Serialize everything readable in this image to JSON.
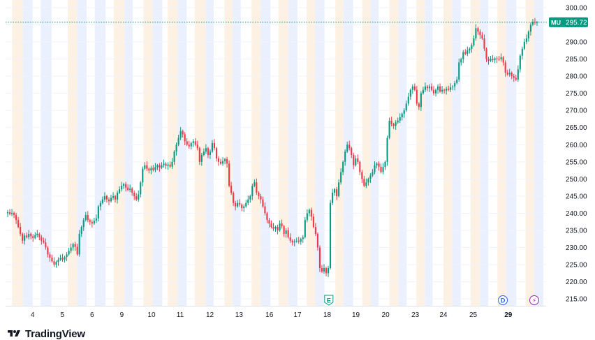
{
  "chart_data": {
    "type": "candlestick",
    "symbol": "MU",
    "last_price": "295.72",
    "symbol_label": "MU",
    "ylim": [
      213,
      301
    ],
    "y_ticks": [
      "300.00",
      "295.00",
      "290.00",
      "285.00",
      "280.00",
      "275.00",
      "270.00",
      "265.00",
      "260.00",
      "255.00",
      "250.00",
      "245.00",
      "240.00",
      "235.00",
      "230.00",
      "225.00",
      "220.00",
      "215.00"
    ],
    "y_tick_values": [
      300,
      295,
      290,
      285,
      280,
      275,
      270,
      265,
      260,
      255,
      250,
      245,
      240,
      235,
      230,
      225,
      220,
      215
    ],
    "x_labels": [
      "4",
      "5",
      "6",
      "9",
      "10",
      "11",
      "12",
      "13",
      "16",
      "17",
      "18",
      "19",
      "20",
      "23",
      "24",
      "25",
      "29"
    ],
    "x_label_bold": "29",
    "markers": [
      {
        "name": "earnings-marker",
        "label": "E"
      },
      {
        "name": "dividend-marker",
        "label": "D"
      },
      {
        "name": "split-marker",
        "label": "⚡"
      }
    ],
    "colors": {
      "up": "#089981",
      "down": "#f23645",
      "session_pre": "#fdf1e3",
      "session_post": "#eaf0fd",
      "grid": "#f0f3fa",
      "price_line": "#089981",
      "axis_text": "#131722",
      "marker_e": "#089981",
      "marker_d": "#2962ff",
      "marker_split": "#9c27b0"
    },
    "price_path": [
      240,
      240.3,
      239.8,
      240.1,
      239.5,
      238,
      236,
      234,
      232,
      233.5,
      233,
      234,
      233.3,
      232.8,
      233.6,
      234,
      233,
      232,
      231.5,
      230,
      228,
      227,
      226,
      225,
      225.8,
      226.5,
      227,
      226.5,
      227.2,
      228,
      229,
      230,
      231,
      230.2,
      228,
      234,
      236,
      238,
      239.5,
      238,
      237.5,
      237,
      237.8,
      238.5,
      242,
      243,
      244,
      245,
      244,
      243.5,
      244.5,
      245,
      244,
      246,
      247,
      248,
      248.5,
      247.5,
      246.8,
      247.2,
      246,
      245,
      244,
      245.5,
      249,
      253,
      254,
      253,
      252.5,
      253.2,
      252.6,
      253.5,
      254,
      253.3,
      254,
      254.5,
      253.8,
      254.2,
      253.6,
      255,
      258,
      260,
      262,
      264,
      263,
      261,
      260,
      259.5,
      260.5,
      261,
      260,
      259,
      255,
      257,
      258,
      259,
      257,
      258,
      260.5,
      259,
      256,
      255,
      254.5,
      255.2,
      255.8,
      254.5,
      248,
      246,
      243,
      242,
      243,
      242.5,
      241.5,
      242,
      243,
      244,
      245,
      248,
      249,
      246,
      245,
      244,
      242,
      240,
      238,
      237,
      236,
      235.5,
      236,
      235,
      237,
      236.2,
      234,
      235,
      233,
      232,
      231.5,
      231.8,
      232,
      231.7,
      232.5,
      233,
      238,
      240,
      241,
      239,
      236,
      234,
      230,
      224,
      223,
      224,
      222.5,
      224,
      243,
      246,
      247,
      245,
      249,
      252,
      255,
      258,
      260,
      259,
      257,
      254,
      256,
      255,
      252,
      250,
      248,
      249,
      250,
      251,
      252,
      254,
      254.5,
      253.6,
      252,
      253.5,
      255,
      262,
      267,
      266,
      265.5,
      266.5,
      267,
      268,
      269,
      270,
      272,
      274,
      276,
      277,
      276,
      272,
      271,
      275,
      276,
      277,
      276.5,
      277,
      276,
      275,
      276,
      277,
      275.5,
      276,
      275.8,
      276.3,
      276,
      276.8,
      277,
      278,
      279,
      284,
      285,
      287,
      286.5,
      287.5,
      288,
      289,
      291,
      294,
      293,
      292,
      291,
      288,
      285,
      284.5,
      285,
      284.7,
      285.2,
      285,
      284.9,
      285.5,
      284,
      281,
      280.5,
      281,
      280,
      279.5,
      279,
      282,
      286,
      288,
      290,
      291,
      293,
      295,
      295.8,
      295.6,
      295.72
    ],
    "bands": [
      {
        "start_frac": 0.012,
        "end_frac": 0.032,
        "kind": "pre"
      },
      {
        "start_frac": 0.032,
        "end_frac": 0.05,
        "kind": "post"
      },
      {
        "start_frac": 0.065,
        "end_frac": 0.085,
        "kind": "post"
      },
      {
        "start_frac": 0.115,
        "end_frac": 0.132,
        "kind": "pre"
      },
      {
        "start_frac": 0.132,
        "end_frac": 0.15,
        "kind": "post"
      },
      {
        "start_frac": 0.165,
        "end_frac": 0.185,
        "kind": "post"
      },
      {
        "start_frac": 0.2,
        "end_frac": 0.22,
        "kind": "pre"
      },
      {
        "start_frac": 0.22,
        "end_frac": 0.235,
        "kind": "post"
      },
      {
        "start_frac": 0.255,
        "end_frac": 0.272,
        "kind": "pre"
      },
      {
        "start_frac": 0.272,
        "end_frac": 0.29,
        "kind": "post"
      },
      {
        "start_frac": 0.3,
        "end_frac": 0.318,
        "kind": "pre"
      },
      {
        "start_frac": 0.318,
        "end_frac": 0.335,
        "kind": "post"
      },
      {
        "start_frac": 0.35,
        "end_frac": 0.37,
        "kind": "pre"
      },
      {
        "start_frac": 0.37,
        "end_frac": 0.385,
        "kind": "post"
      },
      {
        "start_frac": 0.405,
        "end_frac": 0.42,
        "kind": "pre"
      },
      {
        "start_frac": 0.42,
        "end_frac": 0.435,
        "kind": "post"
      },
      {
        "start_frac": 0.455,
        "end_frac": 0.472,
        "kind": "pre"
      },
      {
        "start_frac": 0.472,
        "end_frac": 0.49,
        "kind": "post"
      },
      {
        "start_frac": 0.505,
        "end_frac": 0.523,
        "kind": "pre"
      },
      {
        "start_frac": 0.523,
        "end_frac": 0.54,
        "kind": "post"
      },
      {
        "start_frac": 0.557,
        "end_frac": 0.573,
        "kind": "pre"
      },
      {
        "start_frac": 0.573,
        "end_frac": 0.59,
        "kind": "post"
      },
      {
        "start_frac": 0.61,
        "end_frac": 0.625,
        "kind": "pre"
      },
      {
        "start_frac": 0.625,
        "end_frac": 0.643,
        "kind": "post"
      },
      {
        "start_frac": 0.66,
        "end_frac": 0.675,
        "kind": "pre"
      },
      {
        "start_frac": 0.675,
        "end_frac": 0.69,
        "kind": "post"
      },
      {
        "start_frac": 0.71,
        "end_frac": 0.727,
        "kind": "pre"
      },
      {
        "start_frac": 0.727,
        "end_frac": 0.742,
        "kind": "post"
      },
      {
        "start_frac": 0.76,
        "end_frac": 0.776,
        "kind": "pre"
      },
      {
        "start_frac": 0.776,
        "end_frac": 0.79,
        "kind": "post"
      },
      {
        "start_frac": 0.81,
        "end_frac": 0.826,
        "kind": "pre"
      },
      {
        "start_frac": 0.826,
        "end_frac": 0.842,
        "kind": "post"
      },
      {
        "start_frac": 0.86,
        "end_frac": 0.878,
        "kind": "pre"
      },
      {
        "start_frac": 0.878,
        "end_frac": 0.893,
        "kind": "post"
      },
      {
        "start_frac": 0.91,
        "end_frac": 0.926,
        "kind": "pre"
      },
      {
        "start_frac": 0.926,
        "end_frac": 0.945,
        "kind": "post"
      },
      {
        "start_frac": 0.962,
        "end_frac": 0.978,
        "kind": "pre"
      },
      {
        "start_frac": 0.978,
        "end_frac": 0.995,
        "kind": "post"
      }
    ],
    "x_label_fracs": [
      0.05,
      0.105,
      0.16,
      0.215,
      0.27,
      0.323,
      0.378,
      0.432,
      0.488,
      0.54,
      0.595,
      0.648,
      0.703,
      0.758,
      0.81,
      0.865,
      0.93
    ],
    "marker_fracs": [
      0.598,
      0.92,
      0.978
    ],
    "marker_price_line_label": "MU"
  },
  "brand": {
    "name": "TradingView"
  }
}
